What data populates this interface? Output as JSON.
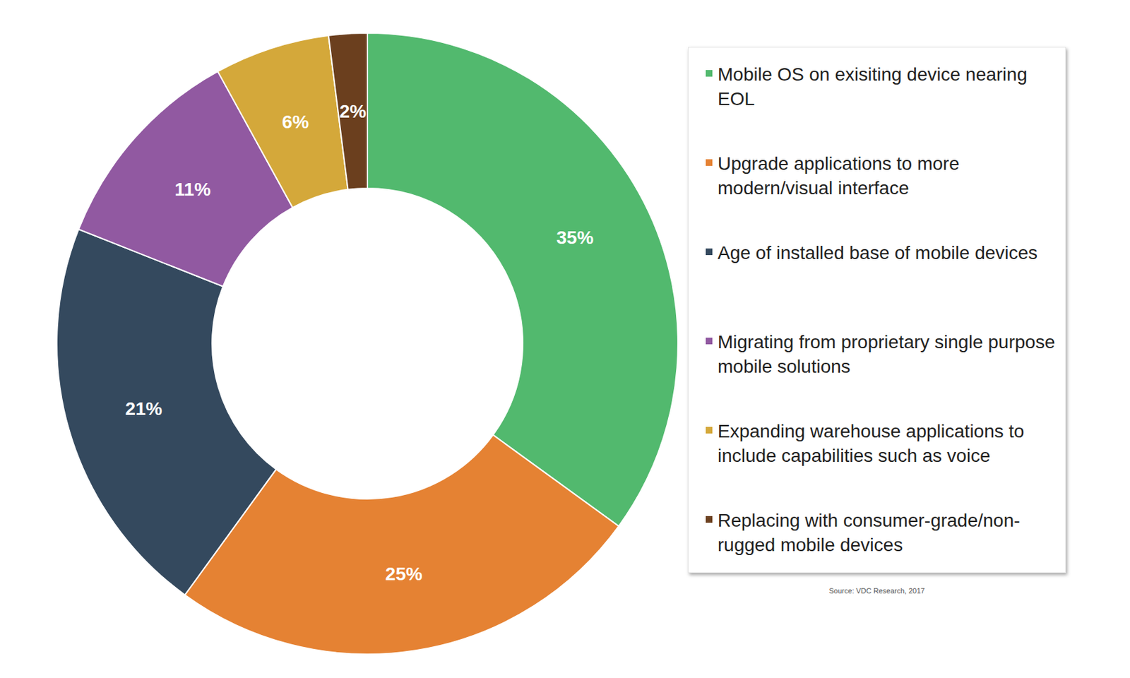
{
  "chart_data": {
    "type": "pie",
    "categories": [
      "Mobile OS on exisiting device nearing EOL",
      "Upgrade applications to more modern/visual interface",
      "Age of installed base of mobile devices",
      "Migrating from proprietary single purpose mobile solutions",
      "Expanding warehouse applications to include capabilities such as voice",
      "Replacing with consumer-grade/non-rugged mobile devices"
    ],
    "values": [
      35,
      25,
      21,
      11,
      6,
      2
    ],
    "value_labels": [
      "35%",
      "25%",
      "21%",
      "11%",
      "6%",
      "2%"
    ],
    "colors": [
      "#52b96e",
      "#e58233",
      "#34495e",
      "#9159a1",
      "#d4a83a",
      "#6b3f1e"
    ],
    "data_labels": true,
    "legend": "right",
    "annotations": [
      "Source: VDC Research, 2017"
    ]
  }
}
